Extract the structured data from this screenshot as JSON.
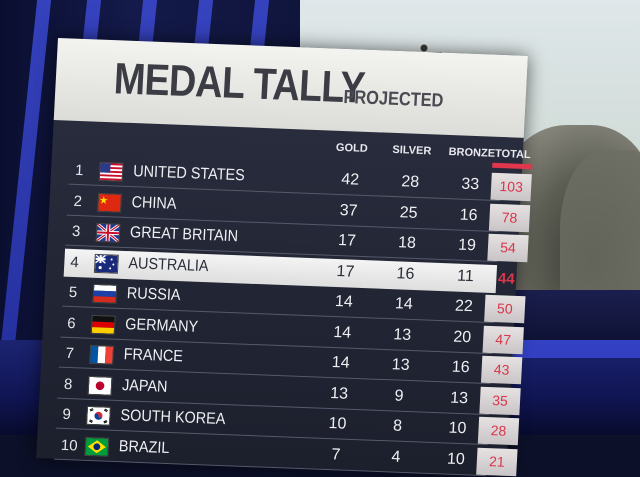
{
  "header": {
    "title": "MEDAL TALLY",
    "subtitle": "PROJECTED"
  },
  "columns": {
    "gold": "GOLD",
    "silver": "SILVER",
    "bronze": "BRONZE",
    "total": "TOTAL"
  },
  "rows": [
    {
      "rank": "1",
      "flag": "usa-flag-icon",
      "country": "UNITED STATES",
      "gold": "42",
      "silver": "28",
      "bronze": "33",
      "total": "103"
    },
    {
      "rank": "2",
      "flag": "china-flag-icon",
      "country": "CHINA",
      "gold": "37",
      "silver": "25",
      "bronze": "16",
      "total": "78"
    },
    {
      "rank": "3",
      "flag": "great-britain-flag-icon",
      "country": "GREAT BRITAIN",
      "gold": "17",
      "silver": "18",
      "bronze": "19",
      "total": "54"
    },
    {
      "rank": "4",
      "flag": "australia-flag-icon",
      "country": "AUSTRALIA",
      "gold": "17",
      "silver": "16",
      "bronze": "11",
      "total": "44"
    },
    {
      "rank": "5",
      "flag": "russia-flag-icon",
      "country": "RUSSIA",
      "gold": "14",
      "silver": "14",
      "bronze": "22",
      "total": "50"
    },
    {
      "rank": "6",
      "flag": "germany-flag-icon",
      "country": "GERMANY",
      "gold": "14",
      "silver": "13",
      "bronze": "20",
      "total": "47"
    },
    {
      "rank": "7",
      "flag": "france-flag-icon",
      "country": "FRANCE",
      "gold": "14",
      "silver": "13",
      "bronze": "16",
      "total": "43"
    },
    {
      "rank": "8",
      "flag": "japan-flag-icon",
      "country": "JAPAN",
      "gold": "13",
      "silver": "9",
      "bronze": "13",
      "total": "35"
    },
    {
      "rank": "9",
      "flag": "south-korea-flag-icon",
      "country": "SOUTH KOREA",
      "gold": "10",
      "silver": "8",
      "bronze": "10",
      "total": "28"
    },
    {
      "rank": "10",
      "flag": "brazil-flag-icon",
      "country": "BRAZIL",
      "gold": "7",
      "silver": "4",
      "bronze": "10",
      "total": "21"
    }
  ],
  "highlighted_row": 3,
  "colors": {
    "total_accent": "#e0374d",
    "board_dark": "#1c1f2c",
    "header_light": "#f3f3f0",
    "studio_blue": "#3d4bd6"
  }
}
